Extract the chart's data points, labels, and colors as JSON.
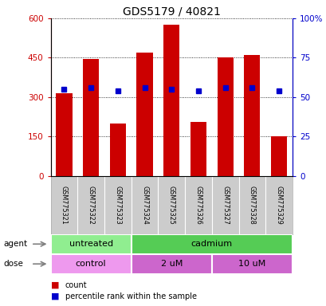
{
  "title": "GDS5179 / 40821",
  "samples": [
    "GSM775321",
    "GSM775322",
    "GSM775323",
    "GSM775324",
    "GSM775325",
    "GSM775326",
    "GSM775327",
    "GSM775328",
    "GSM775329"
  ],
  "counts": [
    315,
    445,
    200,
    470,
    575,
    205,
    450,
    460,
    150
  ],
  "percentiles": [
    55,
    56,
    54,
    56,
    55,
    54,
    56,
    56,
    54
  ],
  "ylim_left": [
    0,
    600
  ],
  "ylim_right": [
    0,
    100
  ],
  "yticks_left": [
    0,
    150,
    300,
    450,
    600
  ],
  "yticks_right": [
    0,
    25,
    50,
    75,
    100
  ],
  "ytick_labels_left": [
    "0",
    "150",
    "300",
    "450",
    "600"
  ],
  "ytick_labels_right": [
    "0",
    "25",
    "50",
    "75",
    "100%"
  ],
  "bar_color": "#cc0000",
  "square_color": "#0000cc",
  "left_axis_color": "#cc0000",
  "right_axis_color": "#0000cc",
  "agent_groups": [
    {
      "label": "untreated",
      "start": 0,
      "end": 3,
      "color": "#90EE90"
    },
    {
      "label": "cadmium",
      "start": 3,
      "end": 9,
      "color": "#55cc55"
    }
  ],
  "dose_groups": [
    {
      "label": "control",
      "start": 0,
      "end": 3,
      "color": "#ee99ee"
    },
    {
      "label": "2 uM",
      "start": 3,
      "end": 6,
      "color": "#cc66cc"
    },
    {
      "label": "10 uM",
      "start": 6,
      "end": 9,
      "color": "#cc66cc"
    }
  ],
  "legend_items": [
    {
      "label": "count",
      "color": "#cc0000"
    },
    {
      "label": "percentile rank within the sample",
      "color": "#0000cc"
    }
  ],
  "background_color": "#ffffff",
  "sample_bg_color": "#cccccc"
}
